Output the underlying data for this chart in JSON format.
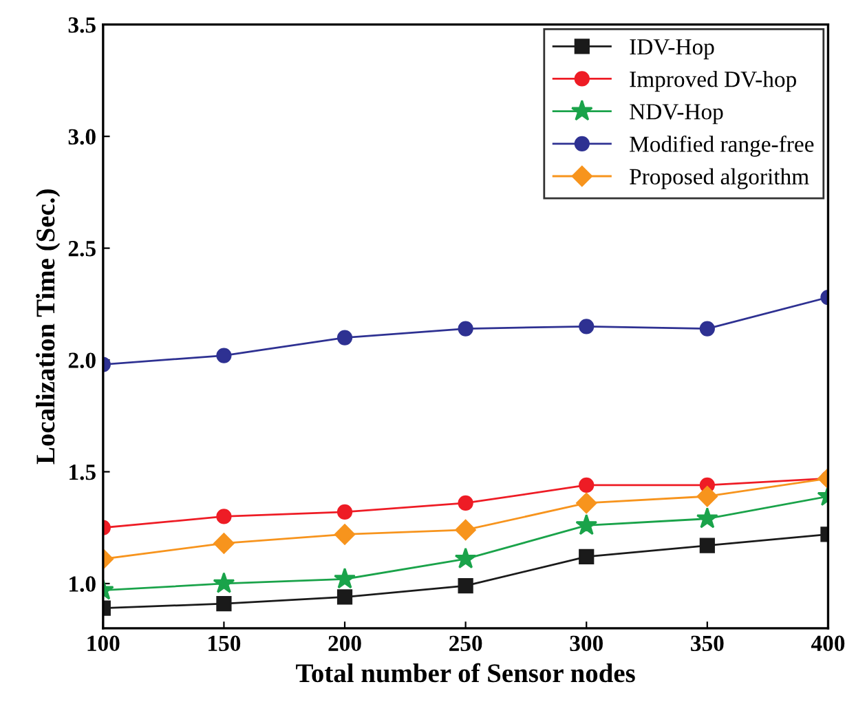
{
  "chart_data": {
    "type": "line",
    "xlabel": "Total number of Sensor nodes",
    "ylabel": "Localization Time (Sec.)",
    "x": [
      100,
      150,
      200,
      250,
      300,
      350,
      400
    ],
    "xlim": [
      100,
      400
    ],
    "xticks": [
      100,
      150,
      200,
      250,
      300,
      350,
      400
    ],
    "ylim": [
      0.8,
      3.5
    ],
    "yticks": [
      {
        "value": 1.0,
        "label": "1.0"
      },
      {
        "value": 1.5,
        "label": "1.5"
      },
      {
        "value": 2.0,
        "label": "2.0"
      },
      {
        "value": 2.5,
        "label": "2.5"
      },
      {
        "value": 3.0,
        "label": "3.0"
      },
      {
        "value": 3.5,
        "label": "3.5"
      }
    ],
    "grid": false,
    "legend": "top right",
    "line_style": "solid",
    "series": [
      {
        "name": "IDV-Hop",
        "color": "#1a1a1a",
        "marker": "square",
        "values": [
          0.89,
          0.91,
          0.94,
          0.99,
          1.12,
          1.17,
          1.22
        ]
      },
      {
        "name": "Improved DV-hop",
        "color": "#ee1c25",
        "marker": "circle",
        "values": [
          1.25,
          1.3,
          1.32,
          1.36,
          1.44,
          1.44,
          1.47
        ]
      },
      {
        "name": "NDV-Hop",
        "color": "#1aa34a",
        "marker": "star",
        "values": [
          0.97,
          1.0,
          1.02,
          1.11,
          1.26,
          1.29,
          1.39
        ]
      },
      {
        "name": "Modified range-free",
        "color": "#2e3192",
        "marker": "circle",
        "values": [
          1.98,
          2.02,
          2.1,
          2.14,
          2.15,
          2.14,
          2.28
        ]
      },
      {
        "name": "Proposed algorithm",
        "color": "#f7941d",
        "marker": "diamond",
        "values": [
          1.11,
          1.18,
          1.22,
          1.24,
          1.36,
          1.39,
          1.47
        ]
      }
    ]
  }
}
